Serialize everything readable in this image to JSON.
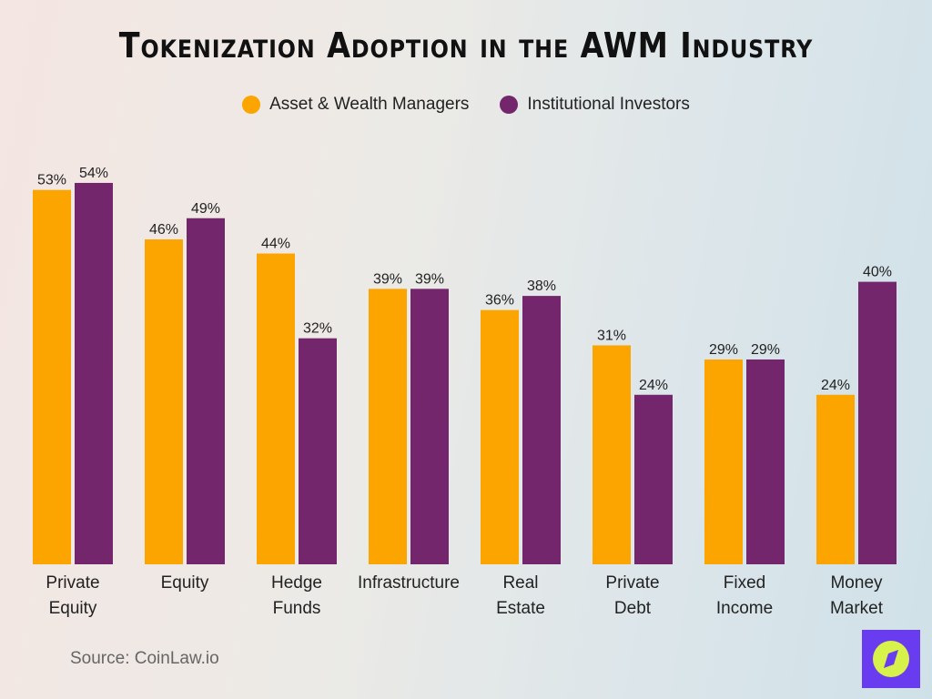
{
  "chart_data": {
    "type": "bar",
    "title": "Tokenization Adoption in the AWM Industry",
    "categories": [
      [
        "Private",
        "Equity"
      ],
      [
        "Equity"
      ],
      [
        "Hedge",
        "Funds"
      ],
      [
        "Infrastructure"
      ],
      [
        "Real",
        "Estate"
      ],
      [
        "Private",
        "Debt"
      ],
      [
        "Fixed",
        "Income"
      ],
      [
        "Money",
        "Market"
      ]
    ],
    "series": [
      {
        "name": "Asset & Wealth Managers",
        "color": "#fca400",
        "values": [
          53,
          46,
          44,
          39,
          36,
          31,
          29,
          24
        ]
      },
      {
        "name": "Institutional Investors",
        "color": "#74266d",
        "values": [
          54,
          49,
          32,
          39,
          38,
          24,
          29,
          40
        ]
      }
    ],
    "value_suffix": "%",
    "ylim": [
      0,
      54
    ],
    "grid": false,
    "legend_position": "top"
  },
  "source": "Source: CoinLaw.io",
  "logo": {
    "icon": "compass-icon",
    "bg": "#6a3cf0",
    "fg": "#d7f24a"
  }
}
